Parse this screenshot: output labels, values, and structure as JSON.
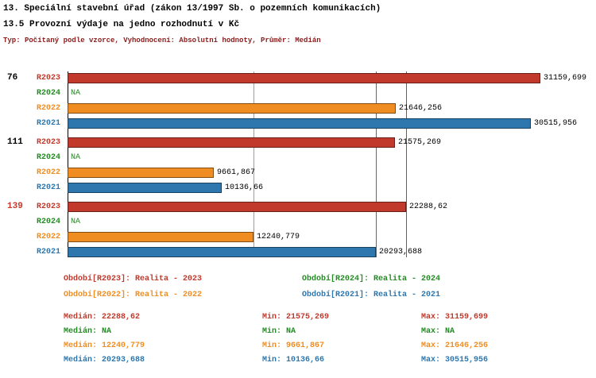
{
  "header": {
    "line1": "13. Speciální stavební úřad (zákon 13/1997 Sb. o pozemních komunikacích)",
    "line2": "13.5 Provozní výdaje na jedno rozhodnutí v Kč",
    "meta": "Typ: Počítaný podle vzorce, Vyhodnocení: Absolutní hodnoty, Průměr: Medián"
  },
  "colors": {
    "meta_text": "#8b1a1a",
    "value_text": "#000000",
    "series": {
      "R2023": "#c0392b",
      "R2024": "#228b22",
      "R2022": "#ef8d22",
      "R2021": "#2d77ae"
    }
  },
  "chart_data": {
    "type": "bar",
    "orientation": "horizontal",
    "unit": "Kč",
    "title": "13.5 Provozní výdaje na jedno rozhodnutí v Kč",
    "xmax": 31159.699,
    "grid": "off",
    "series_order": [
      "R2023",
      "R2024",
      "R2022",
      "R2021"
    ],
    "groups": [
      {
        "label": "76",
        "label_color": "#000000",
        "values": [
          {
            "series": "R2023",
            "value": 31159.699,
            "display": "31159,699"
          },
          {
            "series": "R2024",
            "value": null,
            "display": "NA"
          },
          {
            "series": "R2022",
            "value": 21646.256,
            "display": "21646,256"
          },
          {
            "series": "R2021",
            "value": 30515.956,
            "display": "30515,956"
          }
        ]
      },
      {
        "label": "111",
        "label_color": "#000000",
        "values": [
          {
            "series": "R2023",
            "value": 21575.269,
            "display": "21575,269"
          },
          {
            "series": "R2024",
            "value": null,
            "display": "NA"
          },
          {
            "series": "R2022",
            "value": 9661.867,
            "display": "9661,867"
          },
          {
            "series": "R2021",
            "value": 10136.66,
            "display": "10136,66"
          }
        ]
      },
      {
        "label": "139",
        "label_color": "#c0392b",
        "values": [
          {
            "series": "R2023",
            "value": 22288.62,
            "display": "22288,62"
          },
          {
            "series": "R2024",
            "value": null,
            "display": "NA"
          },
          {
            "series": "R2022",
            "value": 12240.779,
            "display": "12240,779"
          },
          {
            "series": "R2021",
            "value": 20293.688,
            "display": "20293,688"
          }
        ]
      }
    ],
    "median_lines": [
      {
        "series": "R2022",
        "value": 12240.779
      },
      {
        "series": "R2021",
        "value": 20293.688
      },
      {
        "series": "R2023",
        "value": 22288.62
      }
    ]
  },
  "legend": [
    {
      "series": "R2023",
      "text": "Období[R2023]: Realita - 2023"
    },
    {
      "series": "R2024",
      "text": "Období[R2024]: Realita - 2024"
    },
    {
      "series": "R2022",
      "text": "Období[R2022]: Realita - 2022"
    },
    {
      "series": "R2021",
      "text": "Období[R2021]: Realita - 2021"
    }
  ],
  "stats": [
    {
      "series": "R2023",
      "median": "Medián: 22288,62",
      "min": "Min: 21575,269",
      "max": "Max: 31159,699"
    },
    {
      "series": "R2024",
      "median": "Medián: NA",
      "min": "Min: NA",
      "max": "Max: NA"
    },
    {
      "series": "R2022",
      "median": "Medián: 12240,779",
      "min": "Min: 9661,867",
      "max": "Max: 21646,256"
    },
    {
      "series": "R2021",
      "median": "Medián: 20293,688",
      "min": "Min: 10136,66",
      "max": "Max: 30515,956"
    }
  ]
}
